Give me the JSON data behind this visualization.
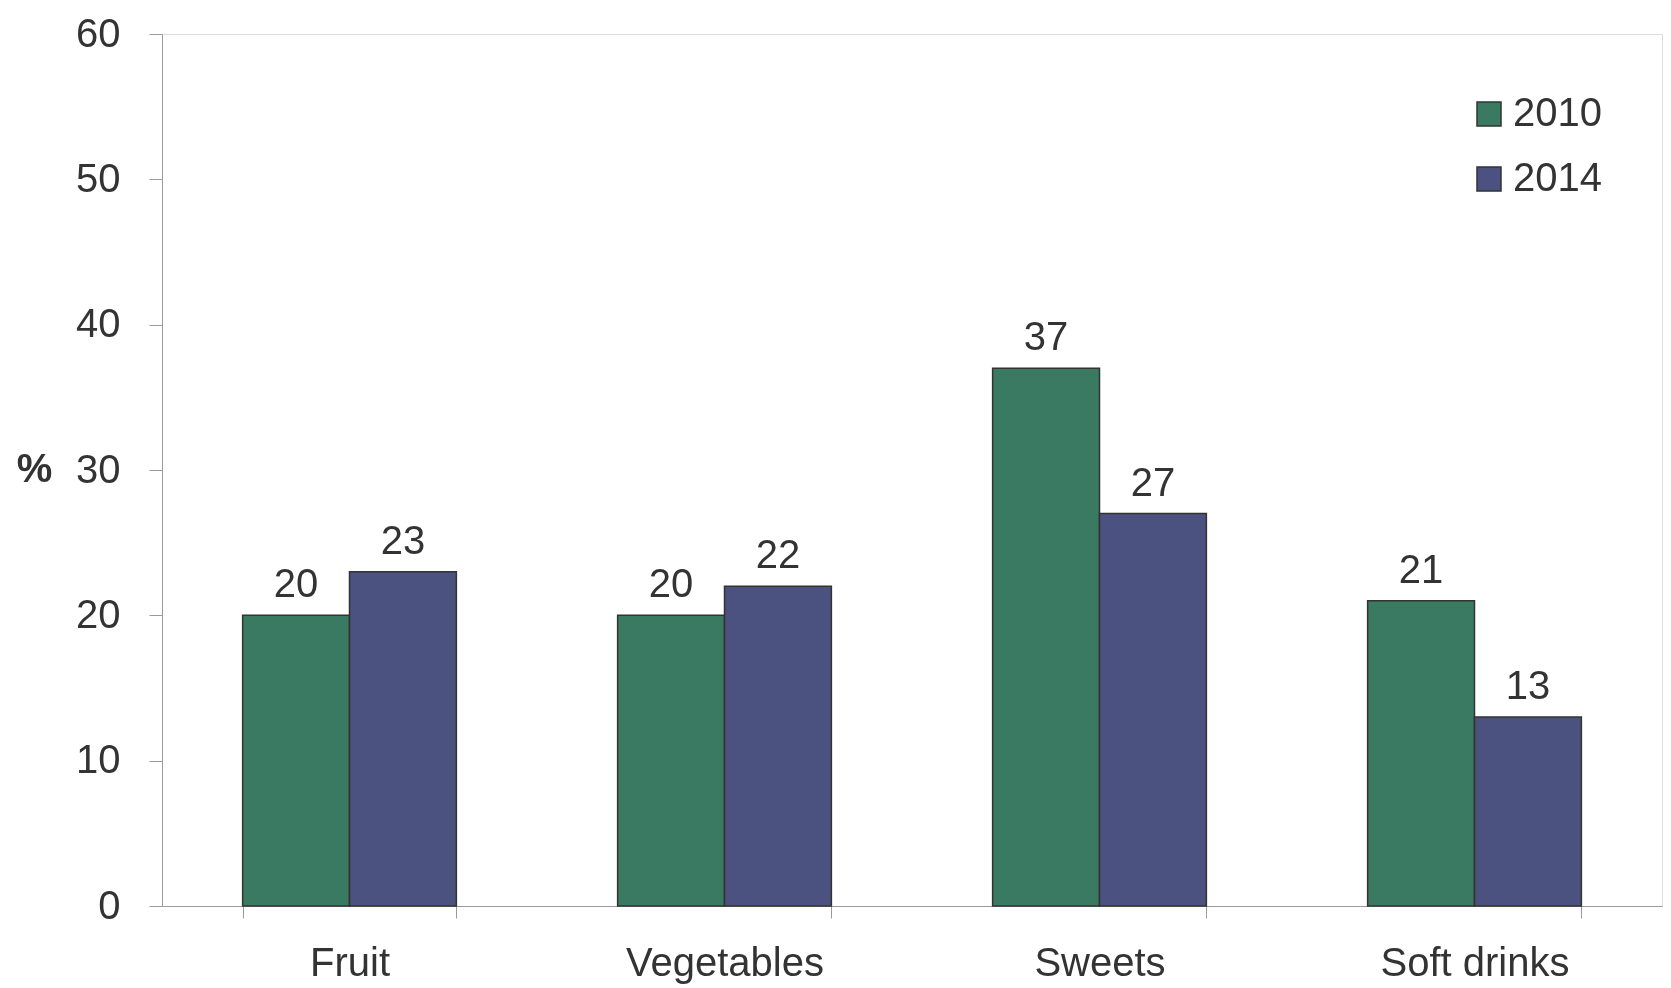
{
  "chart_data": {
    "type": "bar",
    "ylabel": "%",
    "categories": [
      "Fruit",
      "Vegetables",
      "Sweets",
      "Soft drinks"
    ],
    "series": [
      {
        "name": "2010",
        "color": "#3a7a62",
        "values": [
          20,
          20,
          37,
          21
        ]
      },
      {
        "name": "2014",
        "color": "#4b5280",
        "values": [
          23,
          22,
          27,
          13
        ]
      }
    ],
    "ylim": [
      0,
      60
    ],
    "yticks": [
      0,
      10,
      20,
      30,
      40,
      50,
      60
    ],
    "data_labels": true,
    "legend": "top right"
  }
}
